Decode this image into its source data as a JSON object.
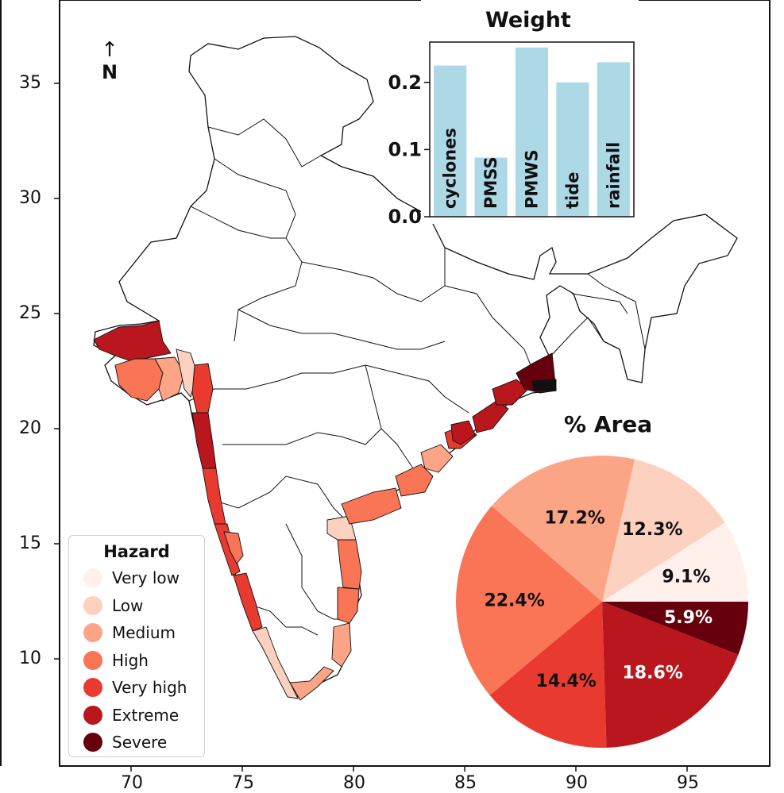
{
  "map": {
    "y_ticks": [
      "35",
      "30",
      "25",
      "20",
      "15",
      "10"
    ],
    "x_ticks": [
      "70",
      "75",
      "80",
      "85",
      "90",
      "95"
    ],
    "north_arrow": "↑",
    "north_label": "N"
  },
  "legend": {
    "title": "Hazard",
    "items": [
      {
        "label": "Very low",
        "color": "#fff0eb"
      },
      {
        "label": "Low",
        "color": "#fdd1bf"
      },
      {
        "label": "Medium",
        "color": "#fca486"
      },
      {
        "label": "High",
        "color": "#fa7456"
      },
      {
        "label": "Very high",
        "color": "#e93a2f"
      },
      {
        "label": "Extreme",
        "color": "#b9171d"
      },
      {
        "label": "Severe",
        "color": "#67000d"
      }
    ]
  },
  "chart_data": [
    {
      "type": "bar",
      "title": "Weight",
      "categories": [
        "cyclones",
        "PMSS",
        "PMWS",
        "tide",
        "rainfall"
      ],
      "values": [
        0.225,
        0.088,
        0.252,
        0.2,
        0.23
      ],
      "ylim": [
        0,
        0.26
      ],
      "yticks": [
        "0.0",
        "0.1",
        "0.2"
      ],
      "bar_color": "#add8e6"
    },
    {
      "type": "pie",
      "title": "% Area",
      "slices": [
        {
          "category": "Very low",
          "label": "9.1%",
          "value": 9.1,
          "color": "#fff0eb",
          "text_color": "#111111"
        },
        {
          "category": "Low",
          "label": "12.3%",
          "value": 12.3,
          "color": "#fdd1bf",
          "text_color": "#111111"
        },
        {
          "category": "Medium",
          "label": "17.2%",
          "value": 17.2,
          "color": "#fca486",
          "text_color": "#111111"
        },
        {
          "category": "High",
          "label": "22.4%",
          "value": 22.4,
          "color": "#fa7456",
          "text_color": "#111111"
        },
        {
          "category": "Very high",
          "label": "14.4%",
          "value": 14.4,
          "color": "#e93a2f",
          "text_color": "#111111"
        },
        {
          "category": "Extreme",
          "label": "18.6%",
          "value": 18.6,
          "color": "#b9171d",
          "text_color": "#ffffff"
        },
        {
          "category": "Severe",
          "label": "5.9%",
          "value": 5.9,
          "color": "#67000d",
          "text_color": "#ffffff"
        }
      ]
    }
  ]
}
